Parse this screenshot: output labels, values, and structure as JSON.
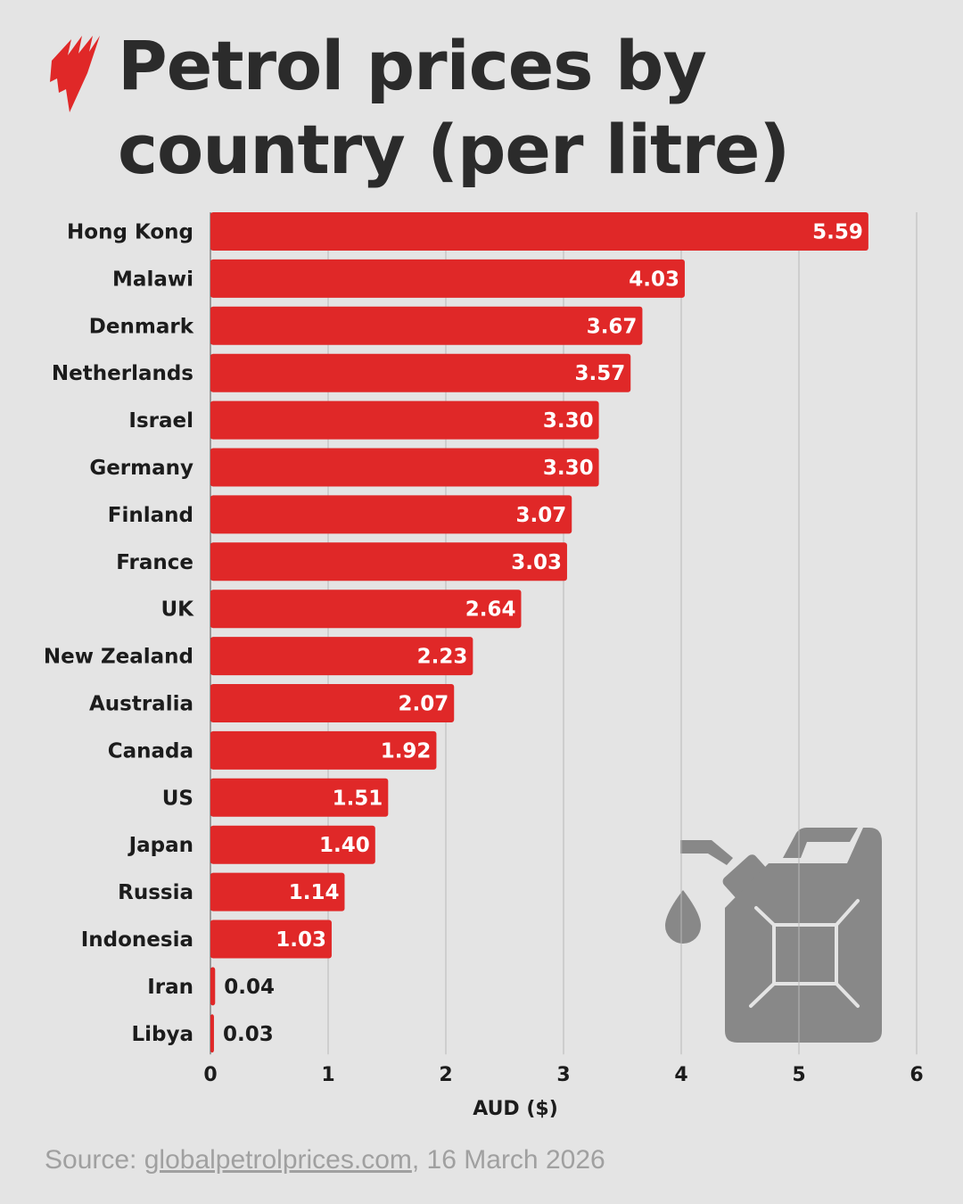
{
  "chart_data": {
    "type": "bar",
    "orientation": "horizontal",
    "title": "Petrol prices by country (per litre)",
    "title_lines": [
      "Petrol prices by",
      "country (per litre)"
    ],
    "categories": [
      "Hong Kong",
      "Malawi",
      "Denmark",
      "Netherlands",
      "Israel",
      "Germany",
      "Finland",
      "France",
      "UK",
      "New Zealand",
      "Australia",
      "Canada",
      "US",
      "Japan",
      "Russia",
      "Indonesia",
      "Iran",
      "Libya"
    ],
    "values": [
      5.59,
      4.03,
      3.67,
      3.57,
      3.3,
      3.3,
      3.07,
      3.03,
      2.64,
      2.23,
      2.07,
      1.92,
      1.51,
      1.4,
      1.14,
      1.03,
      0.04,
      0.03
    ],
    "value_labels": [
      "5.59",
      "4.03",
      "3.67",
      "3.57",
      "3.30",
      "3.30",
      "3.07",
      "3.03",
      "2.64",
      "2.23",
      "2.07",
      "1.92",
      "1.51",
      "1.40",
      "1.14",
      "1.03",
      "0.04",
      "0.03"
    ],
    "xlabel": "AUD ($)",
    "xlim": [
      0,
      6
    ],
    "xticks": [
      "0",
      "1",
      "2",
      "3",
      "4",
      "5",
      "6"
    ],
    "grid": "vertical",
    "bar_color": "#e02828"
  },
  "source": {
    "prefix": "Source: ",
    "link": "globalpetrolprices.com",
    "suffix": ", 16 March 2026"
  },
  "logo": {
    "name": "SBS"
  },
  "icons": {
    "decor": "jerry-can-icon",
    "drop": "fuel-drop-icon"
  }
}
